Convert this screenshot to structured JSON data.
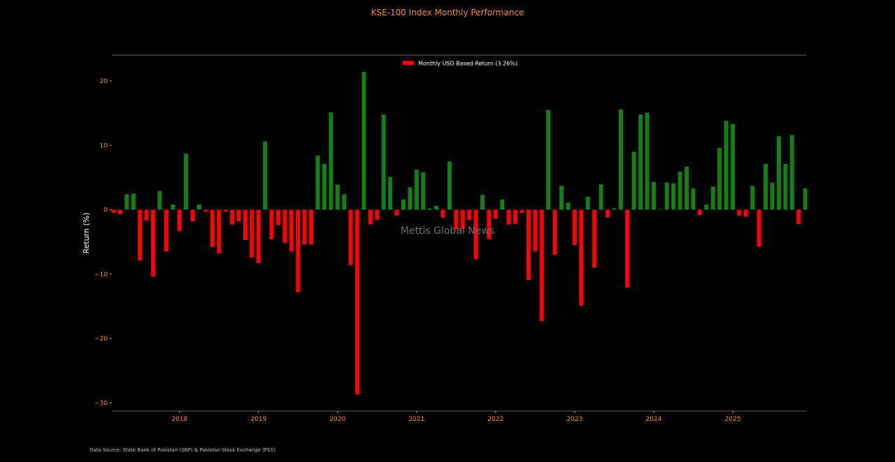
{
  "chart_data": {
    "type": "bar",
    "title": "KSE-100 Index Monthly Performance",
    "xlabel": "",
    "ylabel": "Return (%)",
    "ylim": [
      -31.3,
      24
    ],
    "yticks": [
      20,
      10,
      0,
      -10,
      -20,
      -30
    ],
    "ytick_labels": [
      "20",
      "10",
      "0",
      "−10",
      "−20",
      "−30"
    ],
    "xticks": [
      "2018",
      "2019",
      "2020",
      "2021",
      "2022",
      "2023",
      "2024",
      "2025"
    ],
    "x_start": "2017-03",
    "grid": false,
    "legend_position": "top-center",
    "series": [
      {
        "name": "Monthly USD Based Return (3.26%)",
        "color": "#ff0000",
        "values": [
          -0.5,
          -0.7,
          2.4,
          2.5,
          -7.9,
          -1.7,
          -10.4,
          2.9,
          -6.5,
          0.8,
          -3.3,
          8.7,
          -1.8,
          0.8,
          -0.3,
          -5.8,
          -6.8,
          -0.3,
          -2.3,
          -1.8,
          -4.7,
          -7.4,
          -8.3,
          10.6,
          -4.6,
          -2.4,
          -5.2,
          -6.5,
          -12.8,
          -5.4,
          -5.4,
          8.4,
          7.1,
          15.1,
          3.9,
          2.4,
          -8.6,
          -28.7,
          21.4,
          -2.3,
          -1.6,
          14.8,
          5.1,
          -0.9,
          1.6,
          3.5,
          6.2,
          5.8,
          0.2,
          0.6,
          -1.2,
          7.5,
          -3.0,
          -3.0,
          -1.6,
          -7.7,
          2.3,
          -4.6,
          -1.4,
          1.6,
          -2.3,
          -2.2,
          -0.5,
          -10.9,
          -6.5,
          -17.3,
          15.5,
          -7.0,
          3.7,
          1.1,
          -5.5,
          -14.9,
          2.0,
          -9.0,
          3.9,
          -1.2,
          0.2,
          15.6,
          -12.1,
          9.0,
          14.8,
          15.1,
          4.3,
          0.1,
          4.2,
          4.1,
          5.9,
          6.7,
          3.3,
          -0.8,
          0.8,
          3.6,
          9.6,
          13.8,
          13.3,
          -0.9,
          -1.1,
          3.7,
          -5.7,
          7.1,
          4.2,
          11.4,
          7.1,
          11.6,
          -2.2,
          3.3
        ]
      }
    ],
    "colors": {
      "positive": "#148014",
      "negative": "#ff0000",
      "axis_text": "#f28a2e",
      "label_text": "#ffffff",
      "spine": "#666666"
    }
  },
  "watermark": "Mettis Global News",
  "source_note": "Data Source: State Bank of Pakistan (SBP) & Pakistan Stock Exchange (PSX)"
}
